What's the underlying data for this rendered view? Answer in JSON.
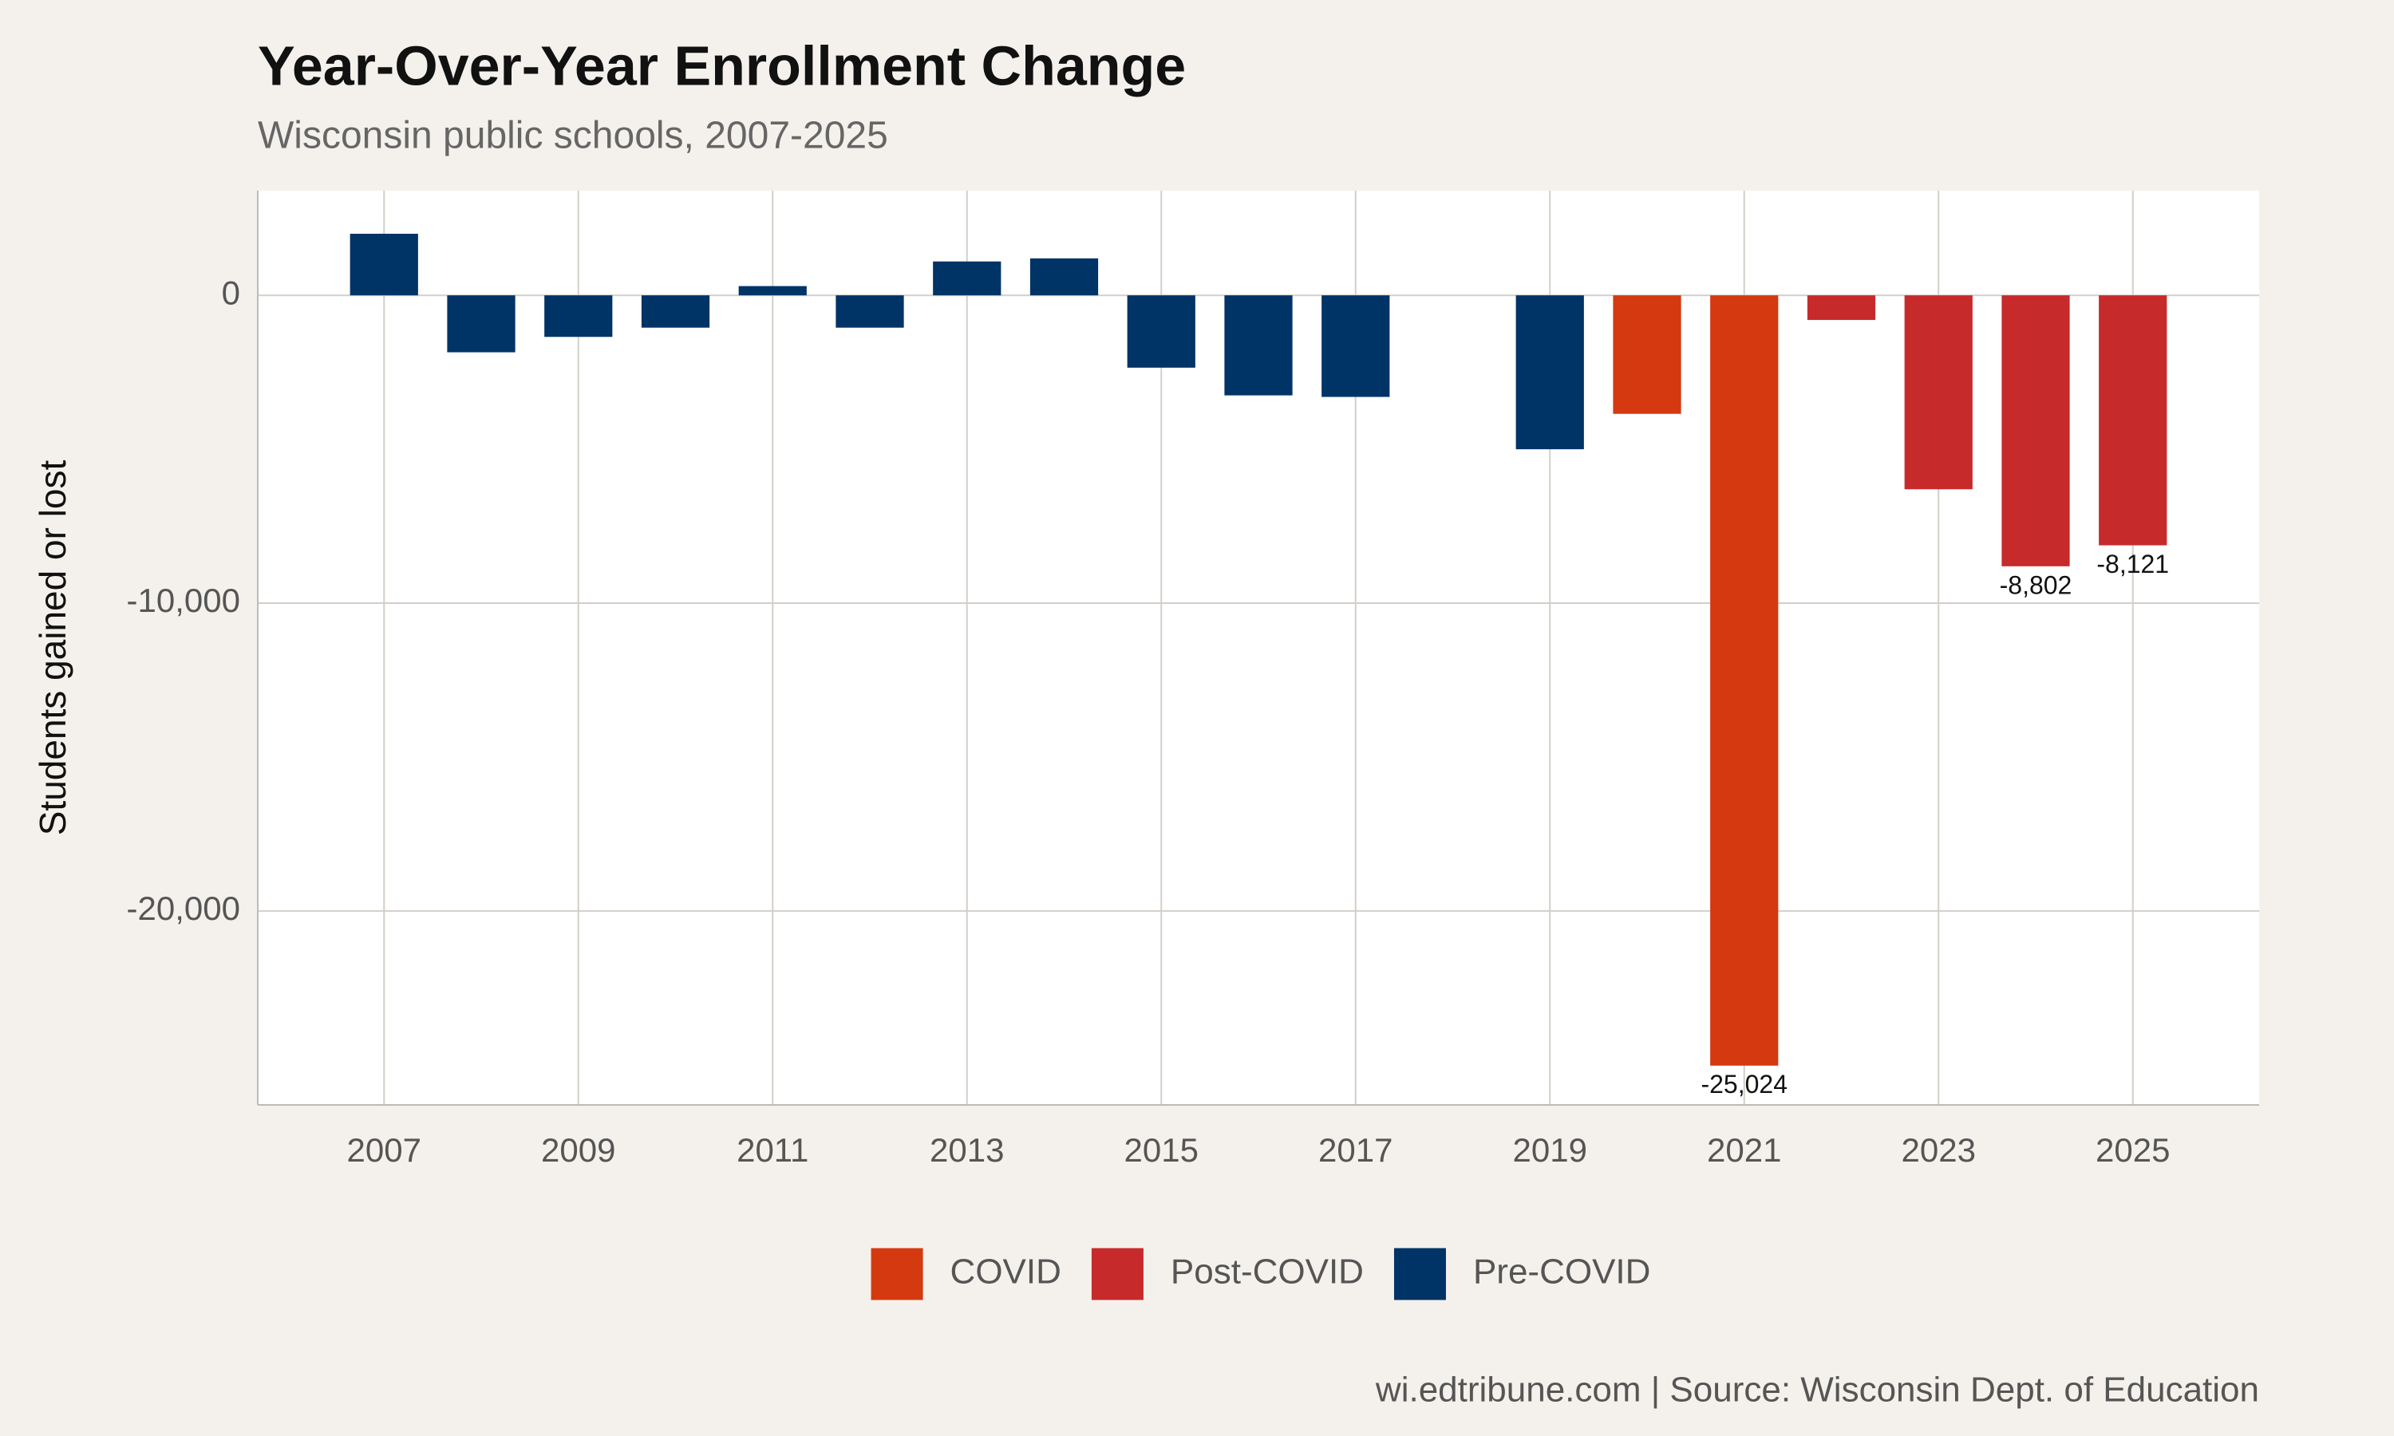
{
  "chart_data": {
    "type": "bar",
    "title": "Year-Over-Year Enrollment Change",
    "subtitle": "Wisconsin public schools, 2007-2025",
    "y_label": "Students gained or lost",
    "caption": "wi.edtribune.com | Source: Wisconsin Dept. of Education",
    "x": [
      2007,
      2008,
      2009,
      2010,
      2011,
      2012,
      2013,
      2014,
      2015,
      2016,
      2017,
      2019,
      2020,
      2021,
      2022,
      2023,
      2024,
      2025
    ],
    "series": [
      {
        "name": "COVID",
        "color": "#d5390f",
        "values": [
          null,
          null,
          null,
          null,
          null,
          null,
          null,
          null,
          null,
          null,
          null,
          null,
          -3850,
          -25024,
          null,
          null,
          null,
          null
        ],
        "value_labels": [
          null,
          null,
          null,
          null,
          null,
          null,
          null,
          null,
          null,
          null,
          null,
          null,
          null,
          "-25,024",
          null,
          null,
          null,
          null
        ]
      },
      {
        "name": "Post-COVID",
        "color": "#c62a2b",
        "values": [
          null,
          null,
          null,
          null,
          null,
          null,
          null,
          null,
          null,
          null,
          null,
          null,
          null,
          null,
          -800,
          -6300,
          -8802,
          -8121
        ],
        "value_labels": [
          null,
          null,
          null,
          null,
          null,
          null,
          null,
          null,
          null,
          null,
          null,
          null,
          null,
          null,
          null,
          null,
          "-8,802",
          "-8,121"
        ]
      },
      {
        "name": "Pre-COVID",
        "color": "#003366",
        "values": [
          2000,
          -1850,
          -1350,
          -1050,
          300,
          -1050,
          1100,
          1200,
          -2350,
          -3250,
          -3300,
          -5000,
          null,
          null,
          null,
          null,
          null,
          null
        ]
      }
    ],
    "xlim": [
      2005.7,
      2026.3
    ],
    "xticks": [
      2007,
      2009,
      2011,
      2013,
      2015,
      2017,
      2019,
      2021,
      2023,
      2025
    ],
    "ylim": [
      -26300,
      3400
    ],
    "yticks": [
      {
        "value": -20000,
        "label": "-20,000"
      },
      {
        "value": -10000,
        "label": "-10,000"
      },
      0
    ],
    "grid": true,
    "legend": "bottom"
  }
}
